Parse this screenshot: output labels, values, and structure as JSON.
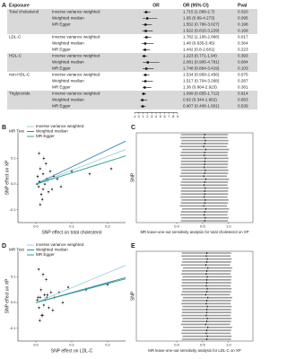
{
  "chart_data": [
    {
      "type": "forest",
      "panel": "A",
      "headers": [
        "Exposure",
        "OR",
        "OR (95% CI)",
        "Pval"
      ],
      "xlim": [
        -1,
        9
      ],
      "xticks": [
        -1,
        0,
        1,
        2,
        3,
        4,
        5,
        6,
        7,
        8,
        9
      ],
      "groups": [
        {
          "name": "Total cholesterol",
          "rows": [
            {
              "method": "Inverse variance weighted",
              "or": 1.715,
              "ci": [
                1.089,
                2.7
              ],
              "or_ci": "1.715 (1.089-2.7)",
              "pval": "0.020"
            },
            {
              "method": "Weighted median",
              "or": 1.95,
              "ci": [
                0.89,
                4.273
              ],
              "or_ci": "1.95 (0.89-4.273)",
              "pval": "0.095"
            },
            {
              "method": "MR Egger",
              "or": 1.552,
              "ci": [
                0.796,
                3.027
              ],
              "or_ci": "1.552 (0.796-3.027)",
              "pval": "0.198"
            },
            {
              "method": null,
              "or": 1.622,
              "ci": [
                0.815,
                3.229
              ],
              "or_ci": "1.622 (0.815-3.229)",
              "pval": "0.169"
            }
          ]
        },
        {
          "name": "LDL-C",
          "rows": [
            {
              "method": "Inverse variance weighted",
              "or": 1.782,
              "ci": [
                1.106,
                2.868
              ],
              "or_ci": "1.782 (1.106-2.868)",
              "pval": "0.017"
            },
            {
              "method": "Weighted median",
              "or": 1.48,
              "ci": [
                0.635,
                3.45
              ],
              "or_ci": "1.48 (0.635-3.45)",
              "pval": "0.364"
            },
            {
              "method": "MR Egger",
              "or": 1.442,
              "ci": [
                0.8,
                2.601
              ],
              "or_ci": "1.442 (0.8-2.601)",
              "pval": "0.223"
            }
          ]
        },
        {
          "name": "HDL-C",
          "rows": [
            {
              "method": "Inverse variance weighted",
              "or": 1.223,
              "ci": [
                0.771,
                1.94
              ],
              "or_ci": "1.223 (0.771-1.94)",
              "pval": "0.393"
            },
            {
              "method": "Weighted median",
              "or": 2.081,
              "ci": [
                0.905,
                4.781
              ],
              "or_ci": "2.081 (0.905-4.781)",
              "pval": "0.084"
            },
            {
              "method": "MR Egger",
              "or": 1.748,
              "ci": [
                0.894,
                3.419
              ],
              "or_ci": "1.748 (0.894-3.419)",
              "pval": "0.103"
            }
          ]
        },
        {
          "name": "non-HDL-C",
          "rows": [
            {
              "method": "Inverse variance weighted",
              "or": 1.534,
              "ci": [
                0.958,
                2.456
              ],
              "or_ci": "1.534 (0.958-2.456)",
              "pval": "0.075"
            },
            {
              "method": "Weighted median",
              "or": 1.517,
              "ci": [
                0.704,
                3.268
              ],
              "or_ci": "1.517 (0.704-3.268)",
              "pval": "0.287"
            },
            {
              "method": "MR Egger",
              "or": 1.36,
              "ci": [
                0.864,
                2.923
              ],
              "or_ci": "1.36 (0.864-2.923)",
              "pval": "0.381"
            }
          ]
        },
        {
          "name": "Triglyceride",
          "rows": [
            {
              "method": "Inverse variance weighted",
              "or": 1.099,
              "ci": [
                0.655,
                1.712
              ],
              "or_ci": "1.099 (0.655-1.712)",
              "pval": "0.814"
            },
            {
              "method": "Weighted median",
              "or": 0.82,
              "ci": [
                0.344,
                1.962
              ],
              "or_ci": "0.82 (0.344-1.962)",
              "pval": "0.653"
            },
            {
              "method": "MR Egger",
              "or": 0.907,
              "ci": [
                0.406,
                1.601
              ],
              "or_ci": "0.907 (0.406-1.601)",
              "pval": "0.539"
            }
          ]
        }
      ]
    },
    {
      "type": "scatter",
      "panel": "B",
      "xlabel": "SNP effect on total cholesterol",
      "ylabel": "SNP effect on XP",
      "xlim": [
        -0.05,
        0.25
      ],
      "xticks": [
        {
          "value": 0,
          "label": "0.0"
        },
        0.1,
        0.2
      ],
      "ylim": [
        -0.15,
        0.2
      ],
      "yticks": [
        -0.1,
        {
          "value": 0,
          "label": "0.0"
        },
        0.1
      ],
      "legend_title": "MR Test",
      "lines": [
        {
          "name": "Inverse variance weighted",
          "color": "#9ecae1",
          "slope": 0.54
        },
        {
          "name": "Weighted median",
          "color": "#3182bd",
          "slope": 0.67
        },
        {
          "name": "MR Egger",
          "color": "#2ca089",
          "slope": 0.44
        }
      ],
      "x": [
        0.01,
        0.02,
        0.005,
        0.03,
        0.015,
        0.04,
        0.025,
        0.008,
        0.012,
        0.05,
        0.035,
        0.02,
        0.06,
        0.018,
        0.003,
        0.028,
        0.045,
        0.022,
        0.1,
        0.15,
        0.21,
        0.012,
        0.033,
        0.07,
        0.009
      ],
      "y": [
        0.01,
        -0.02,
        0.03,
        0.02,
        -0.04,
        0.05,
        0.0,
        -0.01,
        0.06,
        0.03,
        -0.03,
        0.04,
        0.02,
        -0.06,
        0.0,
        0.08,
        -0.02,
        0.1,
        0.05,
        0.04,
        0.06,
        -0.08,
        0.015,
        -0.01,
        0.12
      ]
    },
    {
      "type": "leave-one-out",
      "panel": "C",
      "xlabel": "MR leave-one-out sensitivity analysis for total cholesterol on XP",
      "ylabel": "SNP",
      "xlim": [
        -0.78,
        1.47
      ],
      "xticks": [
        {
          "value": 0,
          "label": "0.0"
        },
        0.5,
        {
          "value": 1,
          "label": "1.0"
        }
      ],
      "estimates": [
        0.54,
        0.53,
        0.55,
        0.54,
        0.52,
        0.56,
        0.54,
        0.53,
        0.55,
        0.54,
        0.54,
        0.53,
        0.55,
        0.54,
        0.52,
        0.56,
        0.54,
        0.53,
        0.55,
        0.54,
        0.54,
        0.53,
        0.55,
        0.54,
        0.52,
        0.56,
        0.54,
        0.53,
        0.55,
        0.54
      ],
      "lo": [
        0.08,
        0.07,
        0.09,
        0.08,
        0.06,
        0.1,
        0.08,
        0.07,
        0.09,
        0.08,
        0.08,
        0.07,
        0.09,
        0.08,
        0.06,
        0.1,
        0.08,
        0.07,
        0.09,
        0.08,
        0.08,
        0.07,
        0.09,
        0.08,
        0.06,
        0.1,
        0.08,
        0.07,
        0.09,
        0.08
      ],
      "hi": [
        0.99,
        0.98,
        1.0,
        0.99,
        0.97,
        1.01,
        0.99,
        0.98,
        1.0,
        0.99,
        0.99,
        0.98,
        1.0,
        0.99,
        0.97,
        1.01,
        0.99,
        0.98,
        1.0,
        0.99,
        0.99,
        0.98,
        1.0,
        0.99,
        0.97,
        1.01,
        0.99,
        0.98,
        1.0,
        0.99
      ]
    },
    {
      "type": "scatter",
      "panel": "D",
      "xlabel": "SNP effect on LDL-C",
      "ylabel": "SNP effect on XP",
      "xlim": [
        -0.05,
        0.25
      ],
      "xticks": [
        {
          "value": 0,
          "label": "0.0"
        },
        0.1,
        0.2
      ],
      "ylim": [
        -0.15,
        0.2
      ],
      "yticks": [
        -0.1,
        {
          "value": 0,
          "label": "0.0"
        },
        0.1
      ],
      "legend_title": "MR Test",
      "lines": [
        {
          "name": "Inverse variance weighted",
          "color": "#9ecae1",
          "slope": 0.58
        },
        {
          "name": "Weighted median",
          "color": "#3182bd",
          "slope": 0.39
        },
        {
          "name": "MR Egger",
          "color": "#2ca089",
          "slope": 0.37
        }
      ],
      "x": [
        0.012,
        0.022,
        0.006,
        0.032,
        0.016,
        0.042,
        0.026,
        0.009,
        0.014,
        0.052,
        0.036,
        0.024,
        0.065,
        0.019,
        0.004,
        0.029,
        0.047,
        0.02,
        0.09,
        0.14,
        0.2,
        0.011,
        0.031,
        0.075,
        0.008
      ],
      "y": [
        0.02,
        -0.01,
        0.02,
        0.03,
        -0.05,
        0.04,
        0.01,
        -0.02,
        0.05,
        0.02,
        -0.02,
        0.03,
        0.04,
        -0.05,
        0.01,
        0.09,
        -0.03,
        0.11,
        0.06,
        0.05,
        0.07,
        -0.07,
        0.02,
        0.0,
        0.13
      ]
    },
    {
      "type": "leave-one-out",
      "panel": "E",
      "xlabel": "MR leave-one-out sensitivity analysis for LDL-C on XP",
      "ylabel": "SNP",
      "xlim": [
        -0.78,
        1.47
      ],
      "xticks": [
        {
          "value": 0,
          "label": "0.0"
        },
        0.5,
        {
          "value": 1,
          "label": "1.0"
        }
      ],
      "estimates": [
        0.58,
        0.57,
        0.59,
        0.58,
        0.56,
        0.6,
        0.58,
        0.57,
        0.59,
        0.58,
        0.58,
        0.57,
        0.59,
        0.58,
        0.56,
        0.6,
        0.58,
        0.57,
        0.59,
        0.58,
        0.58,
        0.57,
        0.59,
        0.58,
        0.56,
        0.6,
        0.58,
        0.57,
        0.59,
        0.58
      ],
      "lo": [
        0.1,
        0.09,
        0.11,
        0.1,
        0.08,
        0.12,
        0.1,
        0.09,
        0.11,
        0.1,
        0.1,
        0.09,
        0.11,
        0.1,
        0.08,
        0.12,
        0.1,
        0.09,
        0.11,
        0.1,
        0.1,
        0.09,
        0.11,
        0.1,
        0.08,
        0.12,
        0.1,
        0.09,
        0.11,
        0.1
      ],
      "hi": [
        1.05,
        1.04,
        1.06,
        1.05,
        1.03,
        1.07,
        1.05,
        1.04,
        1.06,
        1.05,
        1.05,
        1.04,
        1.06,
        1.05,
        1.03,
        1.07,
        1.05,
        1.04,
        1.06,
        1.05,
        1.05,
        1.04,
        1.06,
        1.05,
        1.03,
        1.07,
        1.05,
        1.04,
        1.06,
        1.05
      ]
    }
  ]
}
